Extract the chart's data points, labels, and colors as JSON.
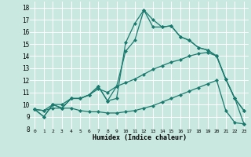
{
  "title": "",
  "xlabel": "Humidex (Indice chaleur)",
  "xlim": [
    -0.5,
    23.5
  ],
  "ylim": [
    8.0,
    18.5
  ],
  "yticks": [
    8,
    9,
    10,
    11,
    12,
    13,
    14,
    15,
    16,
    17,
    18
  ],
  "xticks": [
    0,
    1,
    2,
    3,
    4,
    5,
    6,
    7,
    8,
    9,
    10,
    11,
    12,
    13,
    14,
    15,
    16,
    17,
    18,
    19,
    20,
    21,
    22,
    23
  ],
  "bg_color": "#c8e8e0",
  "line_color": "#1a7a6e",
  "grid_color": "#ffffff",
  "lines": [
    {
      "x": [
        0,
        1,
        2,
        3,
        4,
        5,
        6,
        7,
        8,
        9,
        10,
        11,
        12,
        13,
        14,
        15,
        16,
        17,
        18,
        19,
        20,
        21,
        22,
        23
      ],
      "y": [
        9.6,
        9.0,
        10.0,
        9.7,
        10.5,
        10.5,
        10.8,
        11.5,
        10.3,
        10.5,
        15.1,
        16.7,
        17.8,
        17.0,
        16.4,
        16.5,
        15.6,
        15.3,
        14.7,
        14.5,
        14.0,
        12.1,
        10.5,
        9.5
      ]
    },
    {
      "x": [
        0,
        1,
        2,
        3,
        4,
        5,
        6,
        7,
        8,
        9,
        10,
        11,
        12,
        13,
        14,
        15,
        16,
        17,
        18,
        19,
        20,
        21,
        22,
        23
      ],
      "y": [
        9.6,
        9.0,
        10.0,
        9.7,
        10.5,
        10.5,
        10.8,
        11.5,
        10.3,
        11.5,
        14.4,
        15.3,
        17.8,
        16.4,
        16.4,
        16.5,
        15.6,
        15.3,
        14.7,
        14.5,
        14.0,
        12.1,
        10.5,
        9.5
      ]
    },
    {
      "x": [
        0,
        1,
        2,
        3,
        4,
        5,
        6,
        7,
        8,
        9,
        10,
        11,
        12,
        13,
        14,
        15,
        16,
        17,
        18,
        19,
        20,
        21,
        22,
        23
      ],
      "y": [
        9.6,
        9.5,
        10.0,
        10.0,
        10.5,
        10.5,
        10.8,
        11.3,
        11.0,
        11.5,
        11.8,
        12.1,
        12.5,
        12.9,
        13.2,
        13.5,
        13.7,
        14.0,
        14.2,
        14.3,
        14.0,
        12.1,
        10.5,
        8.4
      ]
    },
    {
      "x": [
        0,
        1,
        2,
        3,
        4,
        5,
        6,
        7,
        8,
        9,
        10,
        11,
        12,
        13,
        14,
        15,
        16,
        17,
        18,
        19,
        20,
        21,
        22,
        23
      ],
      "y": [
        9.6,
        9.5,
        9.7,
        9.7,
        9.7,
        9.5,
        9.4,
        9.4,
        9.3,
        9.3,
        9.4,
        9.5,
        9.7,
        9.9,
        10.2,
        10.5,
        10.8,
        11.1,
        11.4,
        11.7,
        12.0,
        9.5,
        8.5,
        8.4
      ]
    }
  ]
}
